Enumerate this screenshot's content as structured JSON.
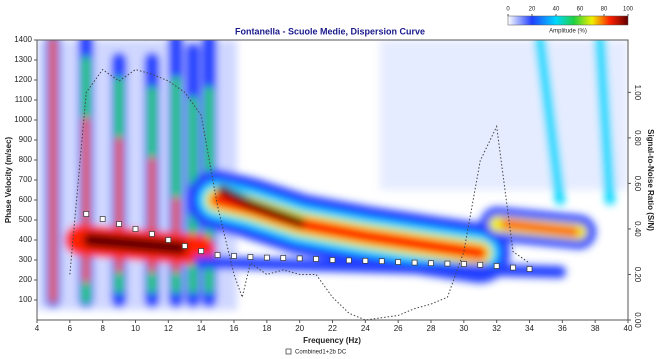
{
  "chart_data": {
    "type": "scatter",
    "title": "Fontanella - Scuole Medie, Dispersion Curve",
    "x_label": "Frequency (Hz)",
    "y_label": "Phase Velocity (m/sec)",
    "y2_label": "Signal-to-Noise Ratio (S/N)",
    "xlim": [
      4,
      40
    ],
    "xticks": [
      4,
      6,
      8,
      10,
      12,
      14,
      16,
      18,
      20,
      22,
      24,
      26,
      28,
      30,
      32,
      34,
      36,
      38,
      40
    ],
    "ylim": [
      0,
      1400
    ],
    "yticks": [
      100,
      200,
      300,
      400,
      500,
      600,
      700,
      800,
      900,
      1000,
      1100,
      1200,
      1300,
      1400
    ],
    "y2lim": [
      0,
      1.23
    ],
    "y2ticks": [
      {
        "value": 0,
        "label": "0.00"
      },
      {
        "value": 0.2,
        "label": "0.20"
      },
      {
        "value": 0.4,
        "label": "0.40"
      },
      {
        "value": 0.6,
        "label": "0.60"
      },
      {
        "value": 0.8,
        "label": "0.80"
      },
      {
        "value": 1.0,
        "label": "1.00"
      }
    ],
    "colorbar": {
      "label": "Amplitude (%)",
      "range": [
        0,
        100
      ],
      "ticks": [
        0,
        20,
        40,
        60,
        80,
        100
      ]
    },
    "series": [
      {
        "name": "Combined1+2b DC",
        "color": "#ffffff",
        "x": [
          7,
          8,
          9,
          10,
          11,
          12,
          13,
          14,
          15,
          16,
          17,
          18,
          19,
          20,
          21,
          22,
          23,
          24,
          25,
          26,
          27,
          28,
          29,
          30,
          31,
          32,
          33,
          34
        ],
        "values": [
          530,
          505,
          480,
          455,
          430,
          400,
          370,
          345,
          325,
          320,
          315,
          312,
          310,
          308,
          305,
          300,
          298,
          296,
          294,
          290,
          287,
          284,
          282,
          280,
          276,
          270,
          262,
          255
        ]
      },
      {
        "axis": "y2",
        "color": "#444444",
        "x": [
          6,
          7,
          8,
          9,
          10,
          11,
          12,
          13,
          14,
          15,
          16,
          16.5,
          17,
          18,
          19,
          20,
          21,
          22,
          23,
          24,
          25,
          26,
          27,
          28,
          29,
          30,
          31,
          32,
          33,
          34
        ],
        "values": [
          0.2,
          1.0,
          1.1,
          1.05,
          1.1,
          1.08,
          1.05,
          1.0,
          0.9,
          0.5,
          0.2,
          0.1,
          0.25,
          0.2,
          0.22,
          0.2,
          0.2,
          0.1,
          0.03,
          0.0,
          0.01,
          0.02,
          0.05,
          0.07,
          0.1,
          0.3,
          0.7,
          0.85,
          0.3,
          0.25
        ]
      }
    ]
  }
}
